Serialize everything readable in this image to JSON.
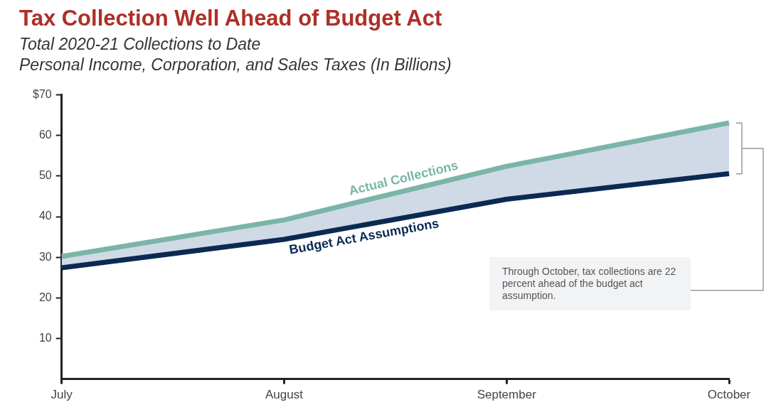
{
  "chart_data": {
    "type": "line",
    "title": "Tax Collection Well Ahead of Budget Act",
    "subtitle": "Total 2020-21 Collections to Date\nPersonal Income, Corporation, and Sales Taxes (In Billions)",
    "categories": [
      "July",
      "August",
      "September",
      "October"
    ],
    "series": [
      {
        "name": "Actual Collections",
        "type": "area",
        "color": "#7ab5a8",
        "values": [
          30.2,
          39.2,
          52.4,
          63.1
        ]
      },
      {
        "name": "Budget Act Assumptions",
        "type": "line",
        "color": "#0b2a52",
        "values": [
          27.4,
          34.4,
          44.3,
          50.6
        ]
      }
    ],
    "ylim": [
      0,
      70
    ],
    "yticks": [
      {
        "value": 70,
        "label": "$70"
      },
      60,
      50,
      40,
      30,
      20,
      10
    ],
    "grid": false,
    "legend": false,
    "marker": "none",
    "line_style": "solid",
    "annotations": [
      "Through October, tax collections are 22 percent ahead of the budget act assumption."
    ]
  }
}
